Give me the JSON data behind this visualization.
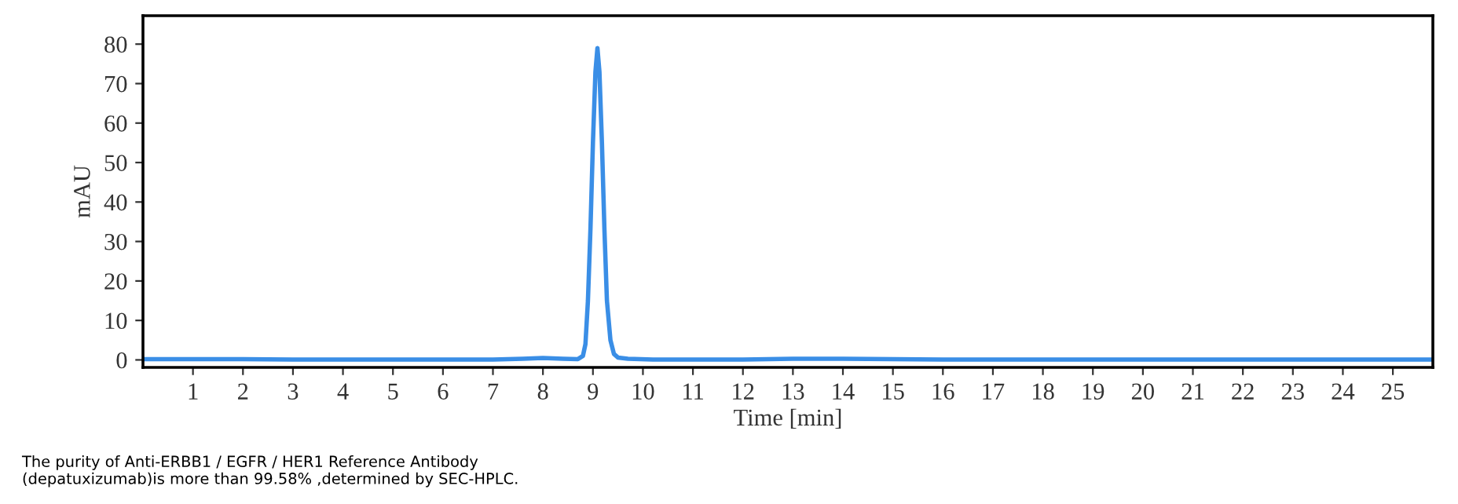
{
  "chart_data": {
    "type": "line",
    "xlabel": "Time [min]",
    "ylabel": "mAU",
    "xlim": [
      0,
      25.8
    ],
    "ylim": [
      -1.9,
      87.2
    ],
    "xticks": [
      1,
      2,
      3,
      4,
      5,
      6,
      7,
      8,
      9,
      10,
      11,
      12,
      13,
      14,
      15,
      16,
      17,
      18,
      19,
      20,
      21,
      22,
      23,
      24,
      25
    ],
    "yticks": [
      0,
      10,
      20,
      30,
      40,
      50,
      60,
      70,
      80
    ],
    "grid": false,
    "legend": false,
    "marker": "none",
    "line_style": "solid",
    "series": [
      {
        "color": "#3a8ee6",
        "x": [
          0,
          2,
          3,
          5,
          7,
          7.6,
          8,
          8.4,
          8.7,
          8.8,
          8.85,
          8.9,
          8.95,
          9.0,
          9.05,
          9.09,
          9.13,
          9.18,
          9.23,
          9.28,
          9.35,
          9.42,
          9.5,
          9.7,
          10.2,
          12,
          13,
          14,
          15,
          16,
          20,
          25.8
        ],
        "values": [
          0.2,
          0.2,
          0.1,
          0.1,
          0.1,
          0.3,
          0.5,
          0.3,
          0.2,
          1,
          4,
          15,
          33,
          55,
          73,
          79,
          73,
          55,
          33,
          15,
          5,
          1.5,
          0.6,
          0.3,
          0.1,
          0.1,
          0.3,
          0.3,
          0.2,
          0.1,
          0.1,
          0.1
        ]
      }
    ],
    "annotations": [
      "The purity of Anti-ERBB1 / EGFR / HER1 Reference Antibody\n(depatuxizumab)is more than 99.58% ,determined by SEC-HPLC."
    ]
  }
}
